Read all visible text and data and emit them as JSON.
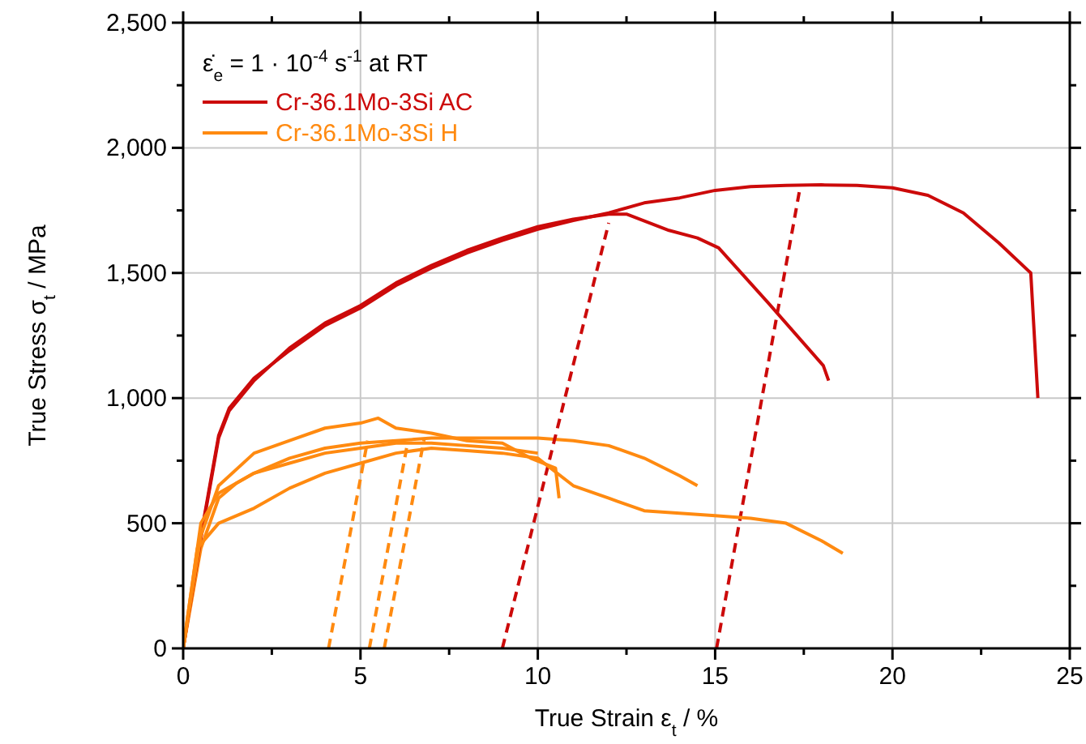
{
  "chart_data": {
    "type": "line",
    "xlabel": "True Strain ε$_{t}$ / %",
    "ylabel": "True Stress σ$_{t}$ / MPa",
    "annotations": [
      "ε̇$_{e}$ = 1 · 10$^{-4}$ s$^{-1}$ at RT"
    ],
    "xlim": [
      0,
      25
    ],
    "ylim": [
      0,
      2500
    ],
    "xticks": [
      0,
      {
        "value": 2.5,
        "label": null
      },
      5,
      {
        "value": 7.5,
        "label": null
      },
      10,
      {
        "value": 12.5,
        "label": null
      },
      15,
      {
        "value": 17.5,
        "label": null
      },
      20,
      {
        "value": 22.5,
        "label": null
      },
      25
    ],
    "yticks": [
      0,
      {
        "value": 250,
        "label": null
      },
      500,
      {
        "value": 750,
        "label": null
      },
      {
        "value": 1000,
        "label": "1,000"
      },
      {
        "value": 1250,
        "label": null
      },
      {
        "value": 1500,
        "label": "1,500"
      },
      {
        "value": 1750,
        "label": null
      },
      {
        "value": 2000,
        "label": "2,000"
      },
      {
        "value": 2250,
        "label": null
      },
      {
        "value": 2500,
        "label": "2,500"
      }
    ],
    "grid": true,
    "legend": "top left",
    "marker": "none",
    "series": [
      {
        "name": "Cr-36.1Mo-3Si AC",
        "color": "#cc0a0a",
        "line_style": "solid",
        "x": [
          0,
          0.5,
          1,
          1.3,
          2,
          3,
          4,
          5,
          6,
          7,
          8,
          9,
          10,
          11,
          12,
          13,
          14,
          15,
          16,
          17,
          18,
          19,
          20,
          21,
          22,
          23,
          23.9,
          24.1
        ],
        "values": [
          0,
          450,
          850,
          960,
          1080,
          1190,
          1290,
          1360,
          1450,
          1520,
          1580,
          1630,
          1675,
          1710,
          1740,
          1780,
          1800,
          1830,
          1845,
          1850,
          1852,
          1850,
          1840,
          1810,
          1740,
          1620,
          1500,
          1000
        ]
      },
      {
        "name": "Cr-36.1Mo-3Si H",
        "color": "#ff8a10",
        "line_style": "solid",
        "x": [
          0,
          0.5,
          1,
          1.5,
          2,
          3,
          4,
          5,
          6,
          7,
          8,
          9,
          10,
          11,
          12,
          13,
          14,
          14.5
        ],
        "values": [
          0,
          400,
          600,
          660,
          700,
          760,
          800,
          820,
          830,
          840,
          840,
          840,
          840,
          830,
          810,
          760,
          690,
          650
        ]
      },
      {
        "color": "#cc0a0a",
        "line_style": "solid",
        "x": [
          0,
          0.5,
          1,
          1.3,
          2,
          3,
          4,
          5,
          6,
          7,
          8,
          9,
          10,
          11,
          12,
          12.5,
          13.7,
          14.5,
          15.1,
          16.5,
          18.05,
          18.2
        ],
        "values": [
          0,
          440,
          840,
          950,
          1070,
          1200,
          1300,
          1370,
          1460,
          1530,
          1590,
          1640,
          1685,
          1715,
          1735,
          1735,
          1670,
          1640,
          1600,
          1380,
          1130,
          1070
        ]
      },
      {
        "color": "#cc0a0a",
        "line_style": "dashed",
        "x": [
          9,
          12
        ],
        "values": [
          0,
          1700
        ]
      },
      {
        "color": "#cc0a0a",
        "line_style": "dashed",
        "x": [
          15.04,
          17.4
        ],
        "values": [
          0,
          1845
        ]
      },
      {
        "color": "#ff8a10",
        "line_style": "solid",
        "x": [
          0,
          0.4,
          1,
          2,
          3,
          4,
          5,
          6,
          7,
          8,
          9,
          10,
          11,
          12,
          13,
          14,
          15,
          16,
          17,
          18,
          18.6
        ],
        "values": [
          0,
          400,
          500,
          560,
          640,
          700,
          740,
          780,
          800,
          790,
          780,
          760,
          650,
          600,
          550,
          540,
          530,
          520,
          500,
          430,
          380
        ]
      },
      {
        "color": "#ff8a10",
        "line_style": "solid",
        "x": [
          0,
          0.5,
          1,
          2,
          3,
          4,
          5,
          5.5,
          6,
          7,
          8,
          9,
          9.8,
          10.5,
          10.6
        ],
        "values": [
          0,
          450,
          650,
          780,
          830,
          880,
          900,
          920,
          880,
          860,
          830,
          820,
          760,
          720,
          600
        ]
      },
      {
        "color": "#ff8a10",
        "line_style": "solid",
        "x": [
          0,
          0.5,
          1,
          2,
          3,
          4,
          5,
          6,
          7,
          8,
          9,
          10
        ],
        "values": [
          0,
          500,
          620,
          700,
          740,
          780,
          800,
          820,
          820,
          810,
          800,
          780
        ]
      },
      {
        "color": "#ff8a10",
        "line_style": "dashed",
        "x": [
          4.1,
          5.2
        ],
        "values": [
          0,
          830
        ]
      },
      {
        "color": "#ff8a10",
        "line_style": "dashed",
        "x": [
          5.25,
          6.3
        ],
        "values": [
          0,
          800
        ]
      },
      {
        "color": "#ff8a10",
        "line_style": "dashed",
        "x": [
          5.67,
          6.8
        ],
        "values": [
          0,
          840
        ]
      }
    ]
  }
}
